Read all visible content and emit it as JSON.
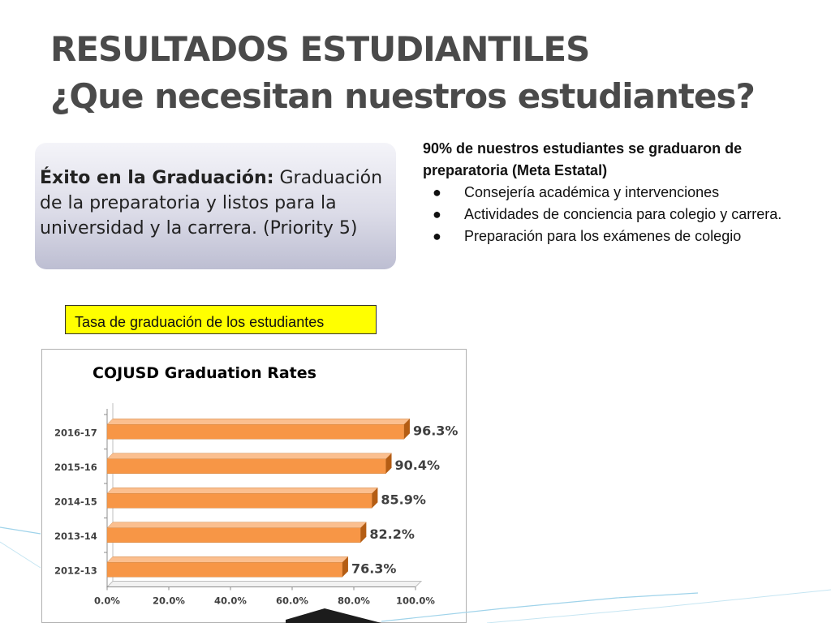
{
  "slide": {
    "title_line1": "RESULTADOS ESTUDIANTILES",
    "title_line2": "¿Que necesitan nuestros estudiantes?"
  },
  "goal_box": {
    "lead": "Éxito en la Graduación:",
    "text": " Graduación de la preparatoria y listos para la universidad y la carrera. (Priority 5)"
  },
  "notes": {
    "headline": "90% de nuestros estudiantes se graduaron de preparatoria (Meta Estatal)",
    "bullet": "●",
    "items": [
      "Consejería académica y intervenciones",
      "Actividades de conciencia para colegio y carrera.",
      "Preparación para los exámenes de colegio"
    ]
  },
  "chart_label": "Tasa de graduación de los estudiantes",
  "colors": {
    "bar_front": "#f79646",
    "bar_top": "#fbbf8f",
    "bar_side": "#b45d14",
    "title_text": "#4a4a4a"
  },
  "chart_data": {
    "type": "bar",
    "orientation": "horizontal",
    "title": "COJUSD Graduation Rates",
    "categories": [
      "2016-17",
      "2015-16",
      "2014-15",
      "2013-14",
      "2012-13"
    ],
    "values": [
      96.3,
      90.4,
      85.9,
      82.2,
      76.3
    ],
    "data_labels": [
      "96.3%",
      "90.4%",
      "85.9%",
      "82.2%",
      "76.3%"
    ],
    "xlim": [
      0,
      100
    ],
    "x_ticks": [
      "0.0%",
      "20.0%",
      "40.0%",
      "60.0%",
      "80.0%",
      "100.0%"
    ],
    "grid": false,
    "legend": "none"
  }
}
